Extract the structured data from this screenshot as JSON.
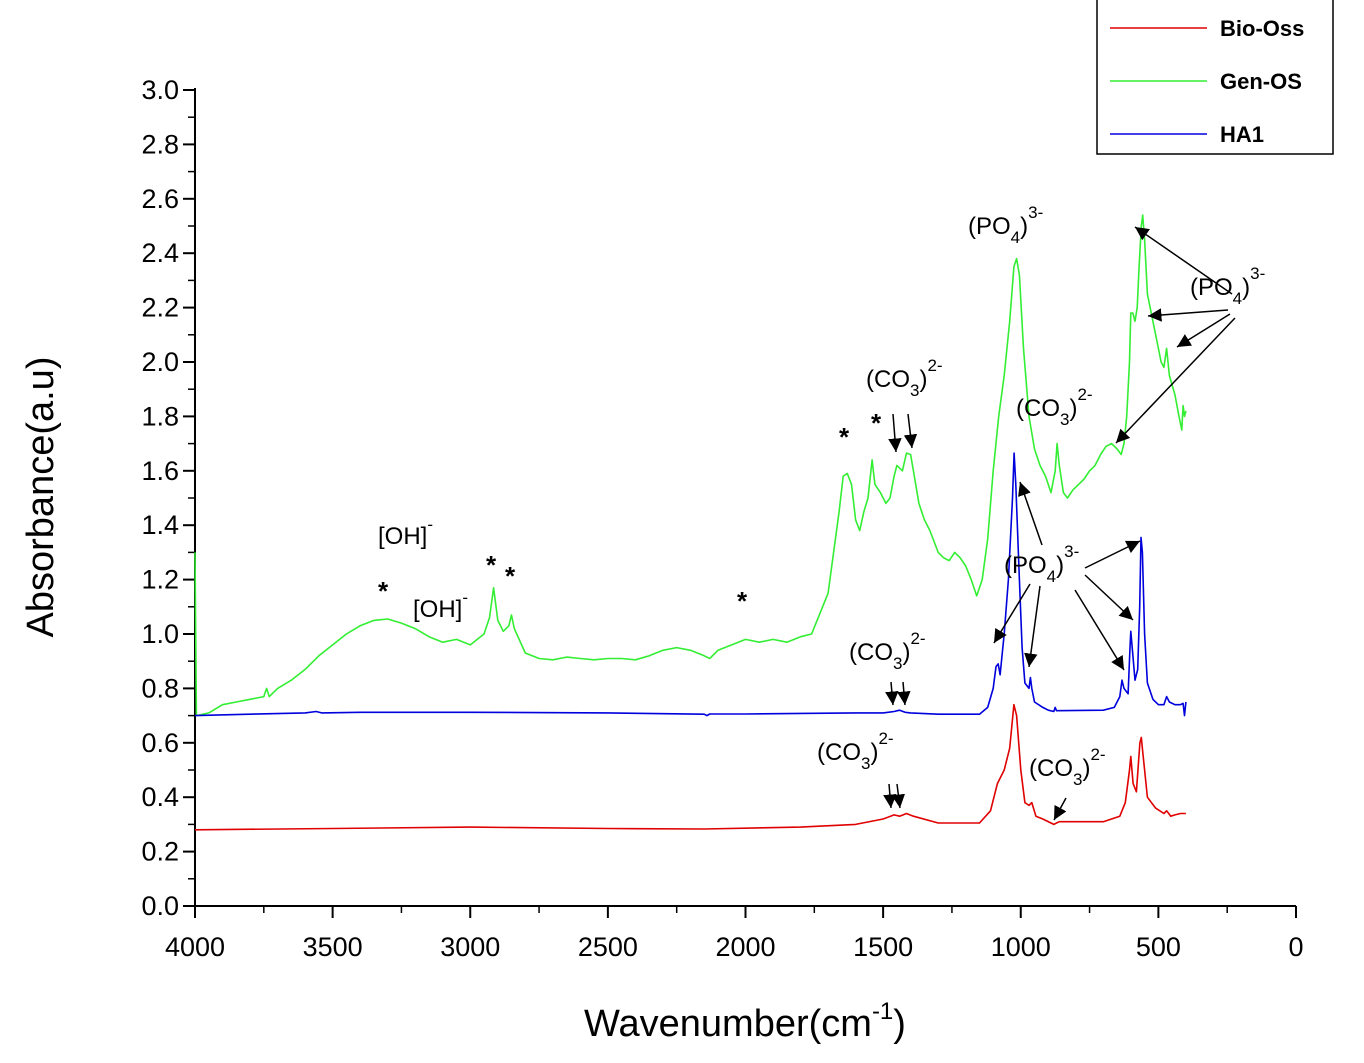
{
  "chart_data": {
    "type": "line",
    "xlabel": "Wavenumber(cm",
    "xlabel_sup": "-1",
    "xlabel_end": ")",
    "ylabel": "Absorbance(a.u)",
    "xlim": [
      4000,
      0
    ],
    "ylim": [
      0.0,
      3.0
    ],
    "x_ticks": [
      4000,
      3500,
      3000,
      2500,
      2000,
      1500,
      1000,
      500,
      0
    ],
    "y_ticks": [
      "0.0",
      "0.2",
      "0.4",
      "0.6",
      "0.8",
      "1.0",
      "1.2",
      "1.4",
      "1.6",
      "1.8",
      "2.0",
      "2.2",
      "2.4",
      "2.6",
      "2.8",
      "3.0"
    ],
    "legend_position": "top-right",
    "series": [
      {
        "name": "Bio-Oss",
        "color": "#e00000",
        "points": [
          [
            4000,
            0.28
          ],
          [
            3500,
            0.285
          ],
          [
            3000,
            0.29
          ],
          [
            2500,
            0.285
          ],
          [
            2150,
            0.283
          ],
          [
            1800,
            0.29
          ],
          [
            1600,
            0.3
          ],
          [
            1500,
            0.32
          ],
          [
            1460,
            0.335
          ],
          [
            1440,
            0.33
          ],
          [
            1415,
            0.34
          ],
          [
            1390,
            0.33
          ],
          [
            1300,
            0.305
          ],
          [
            1150,
            0.305
          ],
          [
            1110,
            0.35
          ],
          [
            1085,
            0.45
          ],
          [
            1060,
            0.5
          ],
          [
            1040,
            0.58
          ],
          [
            1025,
            0.74
          ],
          [
            1015,
            0.7
          ],
          [
            1000,
            0.5
          ],
          [
            985,
            0.38
          ],
          [
            970,
            0.37
          ],
          [
            960,
            0.38
          ],
          [
            945,
            0.33
          ],
          [
            920,
            0.32
          ],
          [
            880,
            0.3
          ],
          [
            860,
            0.31
          ],
          [
            700,
            0.31
          ],
          [
            640,
            0.33
          ],
          [
            620,
            0.38
          ],
          [
            605,
            0.5
          ],
          [
            600,
            0.55
          ],
          [
            592,
            0.45
          ],
          [
            580,
            0.42
          ],
          [
            567,
            0.6
          ],
          [
            562,
            0.62
          ],
          [
            555,
            0.55
          ],
          [
            540,
            0.4
          ],
          [
            510,
            0.36
          ],
          [
            480,
            0.34
          ],
          [
            470,
            0.35
          ],
          [
            455,
            0.33
          ],
          [
            440,
            0.335
          ],
          [
            420,
            0.34
          ],
          [
            400,
            0.34
          ]
        ]
      },
      {
        "name": "Gen-OS",
        "color": "#33ee33",
        "points": [
          [
            4000,
            1.3
          ],
          [
            3995,
            0.7
          ],
          [
            3950,
            0.71
          ],
          [
            3900,
            0.74
          ],
          [
            3850,
            0.75
          ],
          [
            3800,
            0.76
          ],
          [
            3750,
            0.77
          ],
          [
            3740,
            0.8
          ],
          [
            3730,
            0.77
          ],
          [
            3700,
            0.8
          ],
          [
            3650,
            0.83
          ],
          [
            3600,
            0.87
          ],
          [
            3550,
            0.92
          ],
          [
            3500,
            0.96
          ],
          [
            3450,
            1.0
          ],
          [
            3400,
            1.03
          ],
          [
            3350,
            1.05
          ],
          [
            3300,
            1.055
          ],
          [
            3250,
            1.04
          ],
          [
            3200,
            1.02
          ],
          [
            3150,
            0.99
          ],
          [
            3100,
            0.97
          ],
          [
            3050,
            0.98
          ],
          [
            3000,
            0.96
          ],
          [
            2950,
            1.0
          ],
          [
            2930,
            1.06
          ],
          [
            2915,
            1.17
          ],
          [
            2900,
            1.05
          ],
          [
            2880,
            1.01
          ],
          [
            2860,
            1.03
          ],
          [
            2850,
            1.07
          ],
          [
            2840,
            1.02
          ],
          [
            2800,
            0.93
          ],
          [
            2750,
            0.91
          ],
          [
            2700,
            0.905
          ],
          [
            2650,
            0.915
          ],
          [
            2600,
            0.91
          ],
          [
            2550,
            0.905
          ],
          [
            2500,
            0.91
          ],
          [
            2450,
            0.91
          ],
          [
            2400,
            0.905
          ],
          [
            2350,
            0.92
          ],
          [
            2300,
            0.94
          ],
          [
            2250,
            0.95
          ],
          [
            2200,
            0.94
          ],
          [
            2150,
            0.92
          ],
          [
            2130,
            0.91
          ],
          [
            2100,
            0.94
          ],
          [
            2050,
            0.96
          ],
          [
            2000,
            0.98
          ],
          [
            1950,
            0.97
          ],
          [
            1900,
            0.98
          ],
          [
            1850,
            0.97
          ],
          [
            1800,
            0.99
          ],
          [
            1760,
            1.0
          ],
          [
            1740,
            1.05
          ],
          [
            1720,
            1.1
          ],
          [
            1700,
            1.15
          ],
          [
            1680,
            1.3
          ],
          [
            1660,
            1.45
          ],
          [
            1645,
            1.58
          ],
          [
            1630,
            1.59
          ],
          [
            1615,
            1.55
          ],
          [
            1600,
            1.42
          ],
          [
            1585,
            1.38
          ],
          [
            1570,
            1.45
          ],
          [
            1555,
            1.5
          ],
          [
            1540,
            1.64
          ],
          [
            1530,
            1.55
          ],
          [
            1510,
            1.52
          ],
          [
            1490,
            1.48
          ],
          [
            1475,
            1.5
          ],
          [
            1460,
            1.58
          ],
          [
            1450,
            1.62
          ],
          [
            1430,
            1.6
          ],
          [
            1415,
            1.665
          ],
          [
            1400,
            1.66
          ],
          [
            1390,
            1.6
          ],
          [
            1370,
            1.48
          ],
          [
            1350,
            1.42
          ],
          [
            1330,
            1.38
          ],
          [
            1300,
            1.3
          ],
          [
            1280,
            1.28
          ],
          [
            1260,
            1.27
          ],
          [
            1240,
            1.3
          ],
          [
            1220,
            1.28
          ],
          [
            1200,
            1.25
          ],
          [
            1180,
            1.2
          ],
          [
            1160,
            1.14
          ],
          [
            1140,
            1.2
          ],
          [
            1120,
            1.35
          ],
          [
            1100,
            1.6
          ],
          [
            1080,
            1.8
          ],
          [
            1060,
            1.95
          ],
          [
            1040,
            2.15
          ],
          [
            1025,
            2.35
          ],
          [
            1015,
            2.38
          ],
          [
            1005,
            2.32
          ],
          [
            990,
            2.05
          ],
          [
            970,
            1.8
          ],
          [
            950,
            1.68
          ],
          [
            930,
            1.62
          ],
          [
            910,
            1.58
          ],
          [
            890,
            1.52
          ],
          [
            875,
            1.6
          ],
          [
            868,
            1.7
          ],
          [
            860,
            1.62
          ],
          [
            845,
            1.52
          ],
          [
            830,
            1.5
          ],
          [
            810,
            1.53
          ],
          [
            790,
            1.55
          ],
          [
            770,
            1.57
          ],
          [
            750,
            1.6
          ],
          [
            730,
            1.62
          ],
          [
            710,
            1.66
          ],
          [
            690,
            1.69
          ],
          [
            670,
            1.7
          ],
          [
            650,
            1.68
          ],
          [
            635,
            1.66
          ],
          [
            625,
            1.7
          ],
          [
            615,
            1.8
          ],
          [
            605,
            2.0
          ],
          [
            600,
            2.18
          ],
          [
            593,
            2.18
          ],
          [
            585,
            2.15
          ],
          [
            577,
            2.2
          ],
          [
            570,
            2.35
          ],
          [
            562,
            2.5
          ],
          [
            557,
            2.54
          ],
          [
            550,
            2.45
          ],
          [
            540,
            2.25
          ],
          [
            520,
            2.15
          ],
          [
            500,
            2.05
          ],
          [
            490,
            2.0
          ],
          [
            480,
            1.98
          ],
          [
            470,
            2.05
          ],
          [
            460,
            1.95
          ],
          [
            440,
            1.88
          ],
          [
            425,
            1.8
          ],
          [
            415,
            1.75
          ],
          [
            410,
            1.84
          ],
          [
            405,
            1.8
          ],
          [
            400,
            1.82
          ]
        ]
      },
      {
        "name": "HA1",
        "color": "#0000dd",
        "points": [
          [
            4000,
            0.7
          ],
          [
            3800,
            0.705
          ],
          [
            3600,
            0.71
          ],
          [
            3560,
            0.715
          ],
          [
            3540,
            0.71
          ],
          [
            3400,
            0.712
          ],
          [
            3000,
            0.712
          ],
          [
            2500,
            0.71
          ],
          [
            2150,
            0.705
          ],
          [
            2140,
            0.7
          ],
          [
            2130,
            0.706
          ],
          [
            2000,
            0.706
          ],
          [
            1800,
            0.708
          ],
          [
            1600,
            0.71
          ],
          [
            1500,
            0.71
          ],
          [
            1460,
            0.715
          ],
          [
            1440,
            0.72
          ],
          [
            1420,
            0.712
          ],
          [
            1400,
            0.71
          ],
          [
            1300,
            0.705
          ],
          [
            1150,
            0.705
          ],
          [
            1120,
            0.73
          ],
          [
            1100,
            0.8
          ],
          [
            1090,
            0.88
          ],
          [
            1082,
            0.89
          ],
          [
            1075,
            0.85
          ],
          [
            1060,
            1.0
          ],
          [
            1045,
            1.2
          ],
          [
            1030,
            1.5
          ],
          [
            1024,
            1.665
          ],
          [
            1018,
            1.55
          ],
          [
            1005,
            1.2
          ],
          [
            995,
            0.95
          ],
          [
            985,
            0.82
          ],
          [
            970,
            0.8
          ],
          [
            965,
            0.84
          ],
          [
            960,
            0.8
          ],
          [
            950,
            0.75
          ],
          [
            920,
            0.73
          ],
          [
            900,
            0.72
          ],
          [
            880,
            0.715
          ],
          [
            875,
            0.73
          ],
          [
            870,
            0.718
          ],
          [
            700,
            0.72
          ],
          [
            660,
            0.73
          ],
          [
            640,
            0.77
          ],
          [
            632,
            0.83
          ],
          [
            625,
            0.8
          ],
          [
            610,
            0.78
          ],
          [
            603,
            0.95
          ],
          [
            600,
            1.01
          ],
          [
            595,
            0.95
          ],
          [
            585,
            0.83
          ],
          [
            575,
            0.87
          ],
          [
            568,
            1.1
          ],
          [
            563,
            1.355
          ],
          [
            558,
            1.3
          ],
          [
            550,
            1.0
          ],
          [
            540,
            0.82
          ],
          [
            520,
            0.76
          ],
          [
            500,
            0.74
          ],
          [
            480,
            0.74
          ],
          [
            470,
            0.77
          ],
          [
            460,
            0.75
          ],
          [
            440,
            0.74
          ],
          [
            420,
            0.74
          ],
          [
            410,
            0.745
          ],
          [
            405,
            0.7
          ],
          [
            400,
            0.75
          ]
        ]
      }
    ],
    "annotations": {
      "oh_1": {
        "main": "[OH]",
        "sup": "-"
      },
      "oh_2": {
        "main": "[OH]",
        "sup": "-"
      },
      "co3_gen_a": {
        "pre": "(CO",
        "sub": "3",
        "post": ")",
        "sup": "2-"
      },
      "co3_gen_b": {
        "pre": "(CO",
        "sub": "3",
        "post": ")",
        "sup": "2-"
      },
      "po4_gen_a": {
        "pre": "(PO",
        "sub": "4",
        "post": ")",
        "sup": "3-"
      },
      "po4_gen_b": {
        "pre": "(PO",
        "sub": "4",
        "post": ")",
        "sup": "3-"
      },
      "co3_ha": {
        "pre": "(CO",
        "sub": "3",
        "post": ")",
        "sup": "2-"
      },
      "po4_ha": {
        "pre": "(PO",
        "sub": "4",
        "post": ")",
        "sup": "3-"
      },
      "co3_bio_a": {
        "pre": "(CO",
        "sub": "3",
        "post": ")",
        "sup": "2-"
      },
      "co3_bio_b": {
        "pre": "(CO",
        "sub": "3",
        "post": ")",
        "sup": "2-"
      },
      "star": "*"
    }
  }
}
